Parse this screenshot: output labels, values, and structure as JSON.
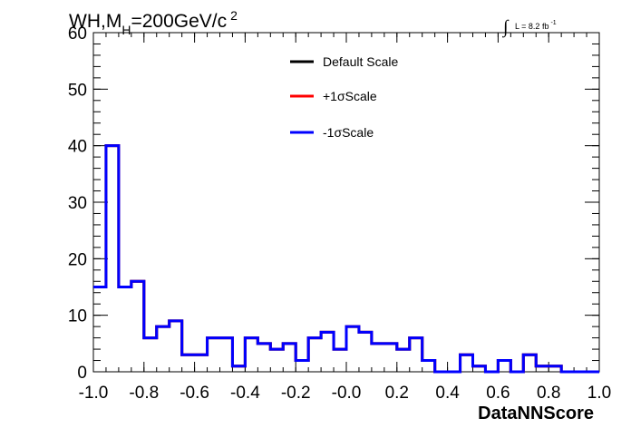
{
  "chart_data": {
    "type": "line",
    "title": {
      "main": "WH,M",
      "subscript": "H",
      "rest": "=200GeV/c",
      "superscript": "2"
    },
    "luminosity": {
      "integral_symbol": "∫",
      "text": "L = 8.2 fb",
      "superscript": "-1"
    },
    "xlabel": "DataNNScore",
    "ylabel": "",
    "xlim": [
      -1.0,
      1.0
    ],
    "ylim": [
      0,
      60
    ],
    "x_ticks": [
      "-1.0",
      "-0.8",
      "-0.6",
      "-0.4",
      "-0.2",
      "-0.0",
      "0.2",
      "0.4",
      "0.6",
      "0.8",
      "1.0"
    ],
    "x_tick_values": [
      -1.0,
      -0.8,
      -0.6,
      -0.4,
      -0.2,
      0.0,
      0.2,
      0.4,
      0.6,
      0.8,
      1.0
    ],
    "y_ticks": [
      "0",
      "10",
      "20",
      "30",
      "40",
      "50",
      "60"
    ],
    "y_tick_values": [
      0,
      10,
      20,
      30,
      40,
      50,
      60
    ],
    "bin_edges": [
      -1.0,
      -0.95,
      -0.9,
      -0.85,
      -0.8,
      -0.75,
      -0.7,
      -0.65,
      -0.6,
      -0.55,
      -0.5,
      -0.45,
      -0.4,
      -0.35,
      -0.3,
      -0.25,
      -0.2,
      -0.15,
      -0.1,
      -0.05,
      0.0,
      0.05,
      0.1,
      0.15,
      0.2,
      0.25,
      0.3,
      0.35,
      0.4,
      0.45,
      0.5,
      0.55,
      0.6,
      0.65,
      0.7,
      0.75,
      0.8,
      0.85,
      0.9,
      0.95,
      1.0
    ],
    "legend_position": "top-center",
    "series": [
      {
        "name": "Default Scale",
        "color": "#000000",
        "values": [
          15,
          40,
          15,
          16,
          6,
          8,
          9,
          3,
          3,
          6,
          6,
          1,
          6,
          5,
          4,
          5,
          2,
          6,
          7,
          4,
          8,
          7,
          5,
          5,
          4,
          6,
          2,
          0,
          0,
          3,
          1,
          0,
          2,
          0,
          3,
          1,
          1,
          0,
          0,
          0
        ]
      },
      {
        "name": "+1σScale",
        "color": "#ff0000",
        "values": [
          15,
          40,
          15,
          16,
          6,
          8,
          9,
          3,
          3,
          6,
          6,
          1,
          6,
          5,
          4,
          5,
          2,
          6,
          7,
          4,
          8,
          7,
          5,
          5,
          4,
          6,
          2,
          0,
          0,
          3,
          1,
          0,
          2,
          0,
          3,
          1,
          1,
          0,
          0,
          0
        ]
      },
      {
        "name": "-1σScale",
        "color": "#0000ff",
        "values": [
          15,
          40,
          15,
          16,
          6,
          8,
          9,
          3,
          3,
          6,
          6,
          1,
          6,
          5,
          4,
          5,
          2,
          6,
          7,
          4,
          8,
          7,
          5,
          5,
          4,
          6,
          2,
          0,
          0,
          3,
          1,
          0,
          2,
          0,
          3,
          1,
          1,
          0,
          0,
          0
        ]
      }
    ]
  }
}
